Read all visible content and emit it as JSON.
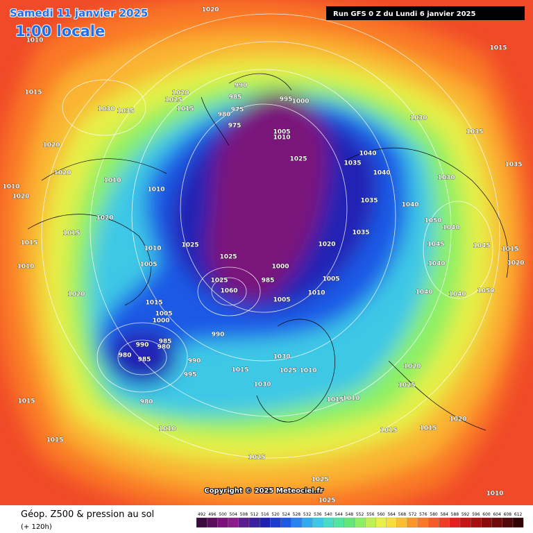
{
  "header": {
    "date": "Samedi 11 janvier 2025",
    "time": "1:00 locale",
    "run": "Run GFS 0 Z du Lundi 6 janvier 2025"
  },
  "copyright": "Copyright © 2025 Meteociel.fr",
  "footer": {
    "title": "Géop. Z500 & pression au sol",
    "lead": "(+ 120h)"
  },
  "isobar_labels": [
    "1020",
    "1010",
    "1015",
    "1030",
    "1035",
    "1020",
    "1025",
    "1015",
    "990",
    "985",
    "975",
    "980",
    "975",
    "995",
    "1000",
    "1005",
    "1010",
    "1025",
    "1020",
    "1020",
    "1010",
    "1010",
    "1010",
    "1020",
    "1020",
    "1015",
    "1015",
    "1010",
    "1010",
    "1005",
    "1025",
    "1025",
    "1000",
    "985",
    "1005",
    "1005",
    "1010",
    "1020",
    "1035",
    "1035",
    "1040",
    "1040",
    "1035",
    "1030",
    "1030",
    "1035",
    "1015",
    "1035",
    "1040",
    "1050",
    "1040",
    "1045",
    "1040",
    "1040",
    "1020",
    "1015",
    "1045",
    "1050",
    "1040",
    "1020",
    "1025",
    "1020",
    "1015",
    "1015",
    "1010",
    "1015",
    "1010",
    "1025",
    "1030",
    "1030",
    "1015",
    "990",
    "990",
    "995",
    "980",
    "985",
    "990",
    "985",
    "980",
    "980",
    "1015",
    "1015",
    "1010",
    "1025",
    "1025",
    "1025",
    "1010",
    "1005",
    "1000",
    "1015",
    "1020",
    "1060",
    "1025"
  ],
  "colorbar": {
    "values": [
      492,
      496,
      500,
      504,
      508,
      512,
      516,
      520,
      524,
      528,
      532,
      536,
      540,
      544,
      548,
      552,
      556,
      560,
      564,
      568,
      572,
      576,
      580,
      584,
      588,
      592,
      596,
      600,
      604,
      608,
      612
    ],
    "colors": [
      "#3c0a3c",
      "#5c0e5c",
      "#7a127a",
      "#8c1c8c",
      "#5a1f8c",
      "#3a1fa0",
      "#2020b4",
      "#1a3cd0",
      "#1e5ae6",
      "#2882f0",
      "#32aaf0",
      "#3cc8e6",
      "#46dcc8",
      "#50e6a0",
      "#64e678",
      "#8cf064",
      "#bef050",
      "#e6f046",
      "#fadc3c",
      "#fabe32",
      "#fa9628",
      "#fa7828",
      "#f55a28",
      "#f03c28",
      "#e61e1e",
      "#c81414",
      "#aa0f0f",
      "#8c0a0a",
      "#6e0a0a",
      "#500808",
      "#320505"
    ]
  }
}
